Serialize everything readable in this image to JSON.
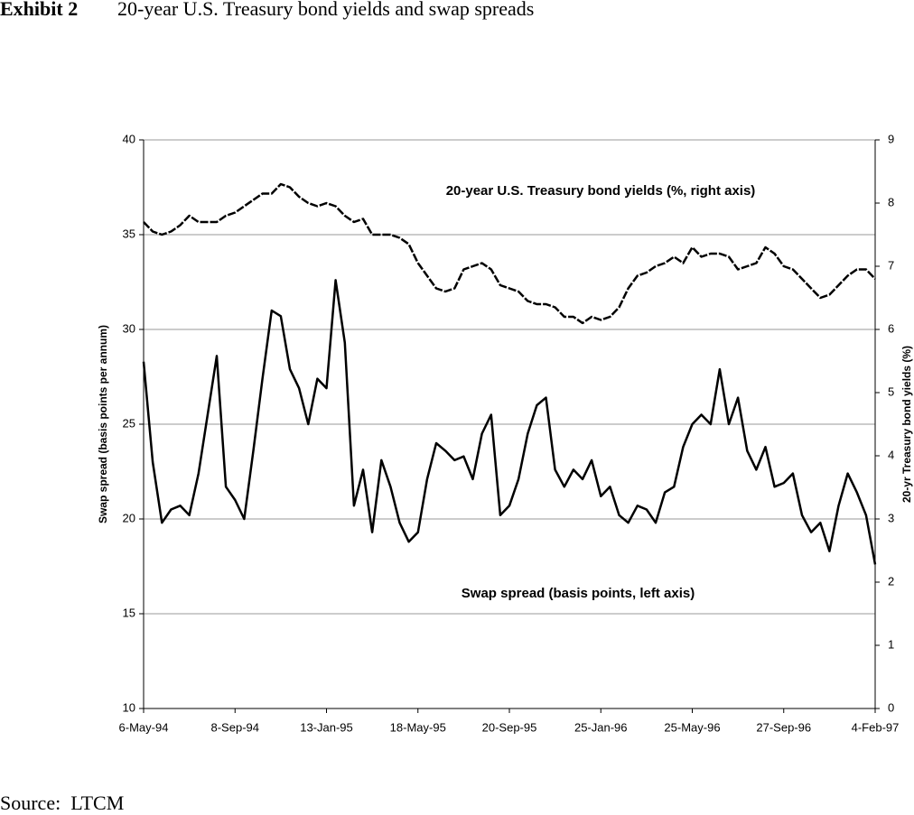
{
  "chart_data": {
    "type": "line",
    "exhibit": "Exhibit 2",
    "title": "20-year U.S. Treasury bond yields and swap spreads",
    "source": "Source:  LTCM",
    "ylabel": "Swap spread (basis points per annum)",
    "y2label": "20-yr Treasury bond yields (%)",
    "categories": [
      "6-May-94",
      null,
      null,
      null,
      null,
      null,
      null,
      null,
      null,
      null,
      "8-Sep-94",
      null,
      null,
      null,
      null,
      null,
      null,
      null,
      null,
      null,
      "13-Jan-95",
      null,
      null,
      null,
      null,
      null,
      null,
      null,
      null,
      null,
      "18-May-95",
      null,
      null,
      null,
      null,
      null,
      null,
      null,
      null,
      null,
      "20-Sep-95",
      null,
      null,
      null,
      null,
      null,
      null,
      null,
      null,
      null,
      "25-Jan-96",
      null,
      null,
      null,
      null,
      null,
      null,
      null,
      null,
      null,
      "25-May-96",
      null,
      null,
      null,
      null,
      null,
      null,
      null,
      null,
      null,
      "27-Sep-96",
      null,
      null,
      null,
      null,
      null,
      null,
      null,
      null,
      null,
      "4-Feb-97"
    ],
    "series": [
      {
        "name": "20-year U.S. Treasury bond yields (%, right axis)",
        "color": "#000000",
        "axis": "y2",
        "line_style": "dashed",
        "values": [
          7.7,
          7.55,
          7.5,
          7.55,
          7.65,
          7.8,
          7.7,
          7.7,
          7.7,
          7.8,
          7.85,
          7.95,
          8.05,
          8.15,
          8.15,
          8.3,
          8.25,
          8.1,
          8.0,
          7.95,
          8.0,
          7.95,
          7.8,
          7.7,
          7.75,
          7.5,
          7.5,
          7.5,
          7.45,
          7.35,
          7.05,
          6.85,
          6.65,
          6.6,
          6.65,
          6.95,
          7.0,
          7.05,
          6.95,
          6.7,
          6.65,
          6.6,
          6.45,
          6.4,
          6.4,
          6.35,
          6.2,
          6.2,
          6.1,
          6.2,
          6.15,
          6.2,
          6.35,
          6.65,
          6.85,
          6.9,
          7.0,
          7.05,
          7.15,
          7.05,
          7.3,
          7.15,
          7.2,
          7.2,
          7.15,
          6.95,
          7.0,
          7.05,
          7.3,
          7.2,
          7.0,
          6.95,
          6.8,
          6.65,
          6.5,
          6.55,
          6.7,
          6.85,
          6.95,
          6.95,
          6.8
        ]
      },
      {
        "name": "Swap spread (basis points, left axis)",
        "color": "#000000",
        "axis": "y",
        "line_style": "solid",
        "values": [
          28.3,
          23,
          19.8,
          20.5,
          20.7,
          20.2,
          22.4,
          25.5,
          28.6,
          21.7,
          21.0,
          20.0,
          23.6,
          27.4,
          31.0,
          30.7,
          27.9,
          26.9,
          25.0,
          27.4,
          26.9,
          32.6,
          29.3,
          20.7,
          22.6,
          19.3,
          23.1,
          21.7,
          19.8,
          18.8,
          19.3,
          22.1,
          24.0,
          23.6,
          23.1,
          23.3,
          22.1,
          24.5,
          25.5,
          20.2,
          20.7,
          22.1,
          24.5,
          26.0,
          26.4,
          22.6,
          21.7,
          22.6,
          22.1,
          23.1,
          21.2,
          21.7,
          20.2,
          19.8,
          20.7,
          20.5,
          19.8,
          21.4,
          21.7,
          23.8,
          25.0,
          25.5,
          25.0,
          27.9,
          25.0,
          26.4,
          23.6,
          22.6,
          23.8,
          21.7,
          21.9,
          22.4,
          20.2,
          19.3,
          19.8,
          18.3,
          20.7,
          22.4,
          21.4,
          20.2,
          17.6
        ]
      }
    ],
    "ylim": [
      10,
      40
    ],
    "yticks": [
      10,
      15,
      20,
      25,
      30,
      35,
      40
    ],
    "y2lim": [
      0,
      9
    ],
    "y2ticks": [
      0,
      1,
      2,
      3,
      4,
      5,
      6,
      7,
      8,
      9
    ],
    "grid": true
  }
}
